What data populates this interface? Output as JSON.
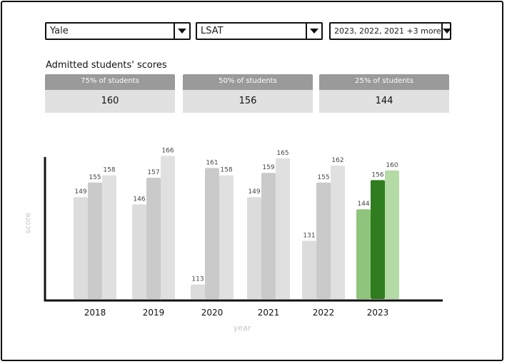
{
  "filters": {
    "school": "Yale",
    "test": "LSAT",
    "years": "2023, 2022, 2021 +3 more"
  },
  "scores_section": {
    "title": "Admitted students' scores",
    "cards": [
      {
        "header": "75% of students",
        "value": "160"
      },
      {
        "header": "50% of students",
        "value": "156"
      },
      {
        "header": "25% of students",
        "value": "144"
      }
    ]
  },
  "chart_data": {
    "type": "bar",
    "xlabel": "year",
    "ylabel": "score",
    "categories": [
      "2018",
      "2019",
      "2020",
      "2021",
      "2022",
      "2023"
    ],
    "series": [
      {
        "values": [
          149,
          146,
          113,
          149,
          131,
          144
        ]
      },
      {
        "values": [
          155,
          157,
          161,
          159,
          155,
          156
        ]
      },
      {
        "values": [
          158,
          166,
          158,
          165,
          162,
          160
        ]
      }
    ],
    "highlight_category": "2023",
    "colors": {
      "default": [
        "#dcdcdc",
        "#cacaca",
        "#e0e0e0"
      ],
      "highlight": [
        "#8fc47c",
        "#2f7d1f",
        "#b4dba5"
      ]
    },
    "grid": false
  }
}
